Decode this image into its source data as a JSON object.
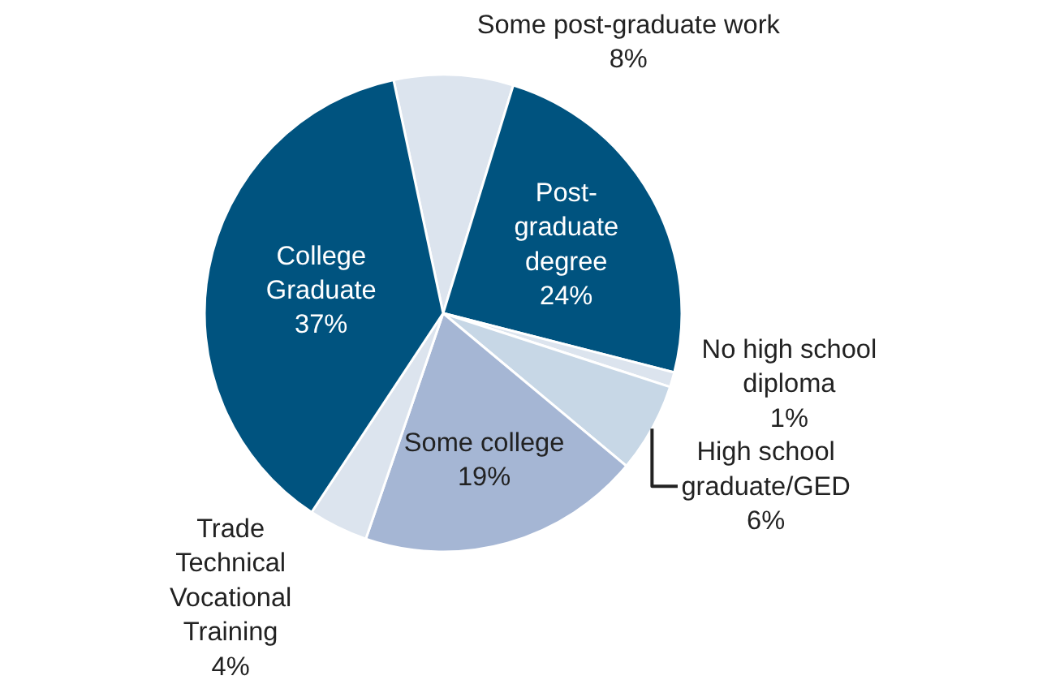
{
  "chart_data": {
    "type": "pie",
    "categories": [
      "Some post-graduate work",
      "Post-\ngraduate\ndegree",
      "No high school\ndiploma",
      "High school\ngraduate/GED",
      "Some college",
      "Trade\nTechnical\nVocational\nTraining",
      "College\nGraduate"
    ],
    "values": [
      8,
      24,
      1,
      6,
      19,
      4,
      37
    ],
    "value_labels": [
      "8%",
      "24%",
      "1%",
      "6%",
      "19%",
      "4%",
      "37%"
    ],
    "colors": [
      "#dce4ee",
      "#00537f",
      "#dce4ee",
      "#c7d7e6",
      "#a5b6d4",
      "#dce4ee",
      "#00537f"
    ],
    "legend": false
  }
}
